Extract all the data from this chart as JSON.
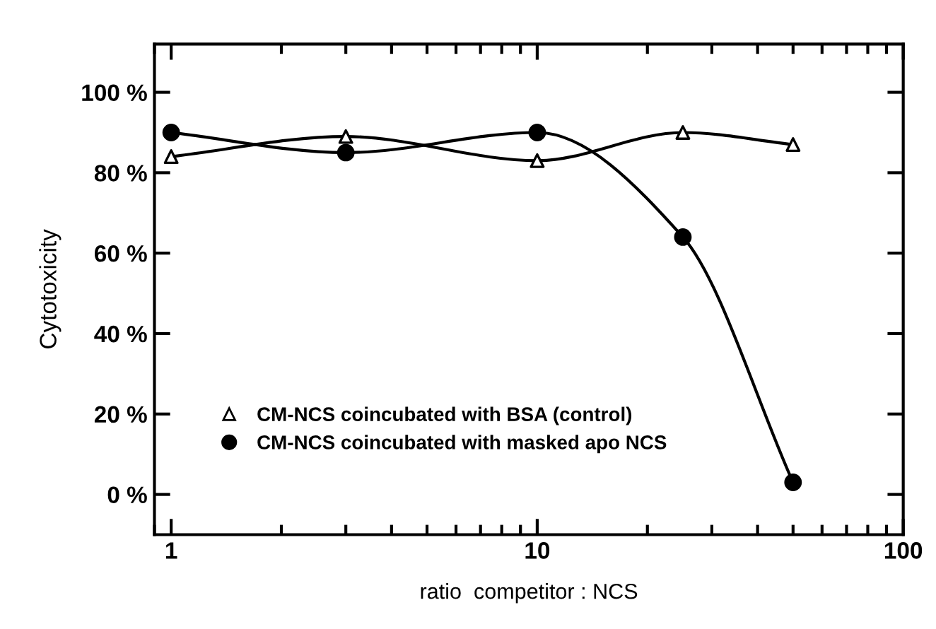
{
  "chart_data": {
    "type": "line",
    "xlabel": "ratio  competitor : NCS",
    "ylabel": "Cytotoxicity",
    "log": "x",
    "x": [
      1,
      3,
      10,
      25,
      50
    ],
    "series": [
      {
        "name": "CM-NCS coincubated with BSA (control)",
        "color": "#000000",
        "marker": "triangle",
        "values": [
          84,
          89,
          83,
          90,
          87
        ]
      },
      {
        "name": "CM-NCS coincubated with masked apo NCS",
        "color": "#000000",
        "marker": "circle",
        "values": [
          90,
          85,
          90,
          64,
          3
        ]
      }
    ],
    "xlim": [
      0.9,
      100
    ],
    "xticks": [
      1,
      10,
      100
    ],
    "ylim": [
      -10,
      112
    ],
    "yticks": [
      {
        "value": 0,
        "label": "0 %"
      },
      {
        "value": 20,
        "label": "20 %"
      },
      {
        "value": 40,
        "label": "40 %"
      },
      {
        "value": 60,
        "label": "60 %"
      },
      {
        "value": 80,
        "label": "80 %"
      },
      {
        "value": 100,
        "label": "100 %"
      }
    ],
    "legend": "bottom left",
    "grid": false,
    "line_style": "solid"
  }
}
